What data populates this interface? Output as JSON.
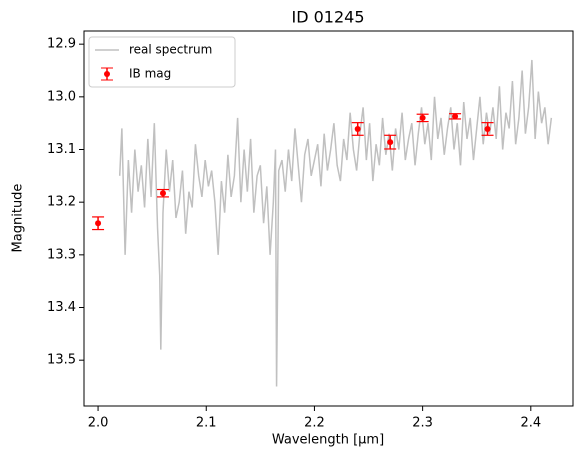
{
  "chart_data": {
    "type": "line",
    "title": "ID 01245",
    "x_label": "Wavelength [µm]",
    "y_label": "Magnitude",
    "xlim": [
      1.987,
      2.439
    ],
    "ylim": [
      13.587,
      12.875
    ],
    "xticks": [
      {
        "value": 2,
        "label": "2.0"
      },
      2.1,
      2.2,
      2.3,
      2.4
    ],
    "yticks": [
      12.9,
      {
        "value": 13,
        "label": "13.0"
      },
      13.1,
      13.2,
      13.3,
      13.4,
      13.5
    ],
    "legend": "upper left",
    "series": [
      {
        "name": "real spectrum",
        "type": "line",
        "color": "#c0c0c0",
        "x": [
          2.02,
          2.022,
          2.025,
          2.028,
          2.031,
          2.034,
          2.037,
          2.04,
          2.043,
          2.046,
          2.049,
          2.052,
          2.055,
          2.057,
          2.058,
          2.06,
          2.063,
          2.066,
          2.069,
          2.072,
          2.075,
          2.078,
          2.081,
          2.084,
          2.087,
          2.09,
          2.093,
          2.096,
          2.099,
          2.102,
          2.105,
          2.108,
          2.111,
          2.114,
          2.117,
          2.12,
          2.123,
          2.126,
          2.129,
          2.132,
          2.135,
          2.138,
          2.141,
          2.144,
          2.147,
          2.15,
          2.153,
          2.156,
          2.159,
          2.162,
          2.164,
          2.165,
          2.167,
          2.17,
          2.173,
          2.176,
          2.179,
          2.182,
          2.185,
          2.188,
          2.191,
          2.194,
          2.197,
          2.2,
          2.203,
          2.206,
          2.209,
          2.212,
          2.215,
          2.218,
          2.221,
          2.224,
          2.227,
          2.23,
          2.233,
          2.236,
          2.239,
          2.242,
          2.245,
          2.248,
          2.251,
          2.254,
          2.257,
          2.26,
          2.263,
          2.266,
          2.269,
          2.272,
          2.275,
          2.278,
          2.281,
          2.284,
          2.287,
          2.29,
          2.293,
          2.296,
          2.299,
          2.302,
          2.305,
          2.308,
          2.311,
          2.314,
          2.317,
          2.32,
          2.323,
          2.326,
          2.329,
          2.332,
          2.335,
          2.338,
          2.341,
          2.344,
          2.347,
          2.35,
          2.353,
          2.356,
          2.359,
          2.362,
          2.365,
          2.368,
          2.371,
          2.374,
          2.377,
          2.38,
          2.383,
          2.386,
          2.389,
          2.392,
          2.395,
          2.398,
          2.401,
          2.404,
          2.407,
          2.41,
          2.413,
          2.416,
          2.419
        ],
        "values": [
          13.15,
          13.06,
          13.3,
          13.12,
          13.22,
          13.1,
          13.18,
          13.13,
          13.21,
          13.08,
          13.19,
          13.05,
          13.25,
          13.34,
          13.48,
          13.22,
          13.1,
          13.18,
          13.12,
          13.23,
          13.2,
          13.14,
          13.26,
          13.18,
          13.21,
          13.09,
          13.15,
          13.19,
          13.12,
          13.17,
          13.14,
          13.2,
          13.3,
          13.16,
          13.22,
          13.11,
          13.19,
          13.15,
          13.04,
          13.2,
          13.1,
          13.18,
          13.08,
          13.22,
          13.15,
          13.13,
          13.24,
          13.17,
          13.3,
          13.2,
          13.1,
          13.55,
          13.14,
          13.12,
          13.18,
          13.1,
          13.16,
          13.06,
          13.13,
          13.2,
          13.11,
          13.08,
          13.15,
          13.12,
          13.09,
          13.17,
          13.07,
          13.14,
          13.1,
          13.05,
          13.13,
          13.16,
          13.08,
          13.12,
          13.03,
          13.1,
          13.14,
          13.07,
          13.02,
          13.12,
          13.05,
          13.16,
          13.09,
          13.13,
          13.04,
          13.11,
          13.07,
          13.14,
          13.06,
          13.1,
          13.03,
          13.12,
          13.08,
          13.05,
          13.13,
          13.07,
          13.02,
          13.09,
          13.05,
          13.12,
          13.0,
          13.08,
          13.04,
          13.11,
          13.06,
          13.02,
          13.1,
          13.05,
          13.13,
          13.01,
          13.08,
          13.04,
          13.12,
          13.06,
          13.0,
          13.09,
          13.03,
          13.07,
          13.02,
          13.08,
          12.98,
          13.1,
          13.03,
          13.06,
          12.97,
          13.09,
          13.04,
          12.95,
          13.07,
          13.02,
          12.93,
          13.08,
          12.99,
          13.05,
          13.02,
          13.09,
          13.04
        ]
      },
      {
        "name": "IB mag",
        "type": "errorbar",
        "color": "#ff0000",
        "x": [
          2.0,
          2.06,
          2.24,
          2.27,
          2.3,
          2.33,
          2.36
        ],
        "values": [
          13.24,
          13.183,
          13.061,
          13.086,
          13.04,
          13.037,
          13.061
        ],
        "errors": [
          0.012,
          0.007,
          0.012,
          0.013,
          0.007,
          0.005,
          0.012
        ]
      }
    ]
  }
}
